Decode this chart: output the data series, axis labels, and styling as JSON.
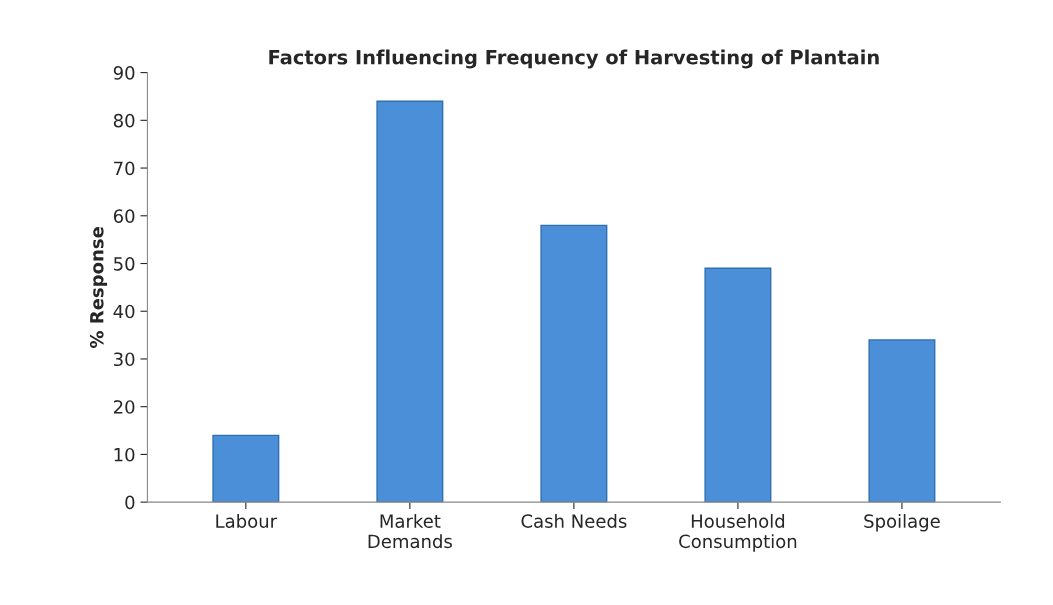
{
  "chart_data": {
    "type": "bar",
    "title": "Factors Influencing Frequency of Harvesting of Plantain",
    "ylabel": "% Response",
    "categories": [
      "Labour",
      "Market\nDemands",
      "Cash Needs",
      "Household\nConsumption",
      "Spoilage"
    ],
    "values": [
      14,
      84,
      58,
      49,
      34
    ],
    "color": "#4a8fd8",
    "ylim": [
      0,
      90
    ],
    "yticks": [
      0,
      10,
      20,
      30,
      40,
      50,
      60,
      70,
      80,
      90
    ],
    "grid": false
  }
}
